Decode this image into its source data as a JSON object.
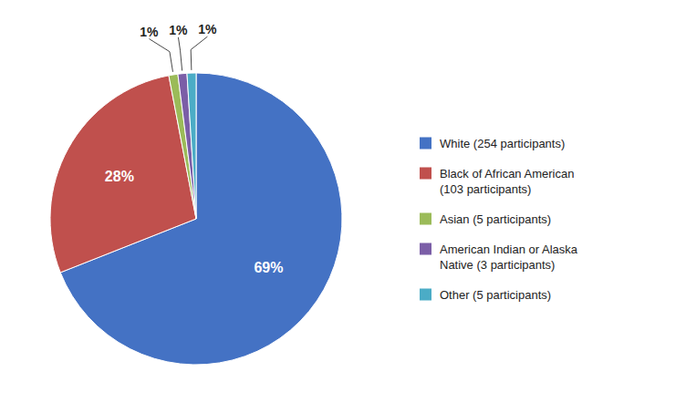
{
  "chart_data": {
    "type": "pie",
    "categories": [
      "White (254 participants)",
      "Black of African American\n(103 participants)",
      "Asian (5 participants)",
      "American Indian or Alaska\nNative (3 participants)",
      "Other (5 participants)"
    ],
    "values": [
      69,
      28,
      1,
      1,
      1
    ],
    "value_labels": [
      "69%",
      "28%",
      "1%",
      "1%",
      "1%"
    ],
    "colors": [
      "#4472C4",
      "#C0504D",
      "#9BBB59",
      "#7B5EA7",
      "#4BACC6"
    ],
    "data_labels": true,
    "legend": "right"
  }
}
